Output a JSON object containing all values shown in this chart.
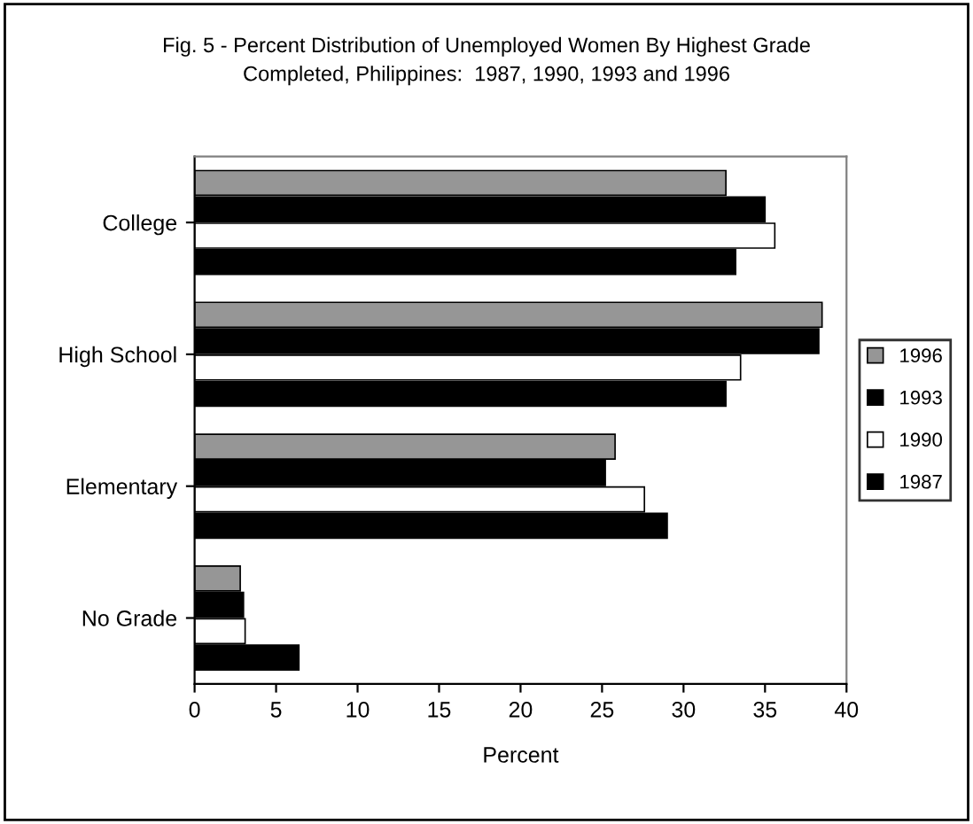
{
  "chart_data": {
    "type": "bar",
    "orientation": "horizontal",
    "title": "Fig. 5 - Percent Distribution of Unemployed Women By Highest Grade\nCompleted, Philippines:  1987, 1990, 1993 and 1996",
    "xlabel": "Percent",
    "categories": [
      "College",
      "High School",
      "Elementary",
      "No Grade"
    ],
    "series": [
      {
        "name": "1996",
        "color": "#969696",
        "values": [
          32.6,
          38.5,
          25.8,
          2.8
        ]
      },
      {
        "name": "1993",
        "color": "#000000",
        "values": [
          35.0,
          38.3,
          25.2,
          3.0
        ]
      },
      {
        "name": "1990",
        "color": "#ffffff",
        "values": [
          35.6,
          33.5,
          27.6,
          3.1
        ]
      },
      {
        "name": "1987",
        "color": "#000000",
        "values": [
          33.2,
          32.6,
          29.0,
          6.4
        ]
      }
    ],
    "xlim": [
      0,
      40
    ],
    "xticks": [
      0,
      5,
      10,
      15,
      20,
      25,
      30,
      35,
      40
    ],
    "grid": false,
    "legend": "right"
  }
}
